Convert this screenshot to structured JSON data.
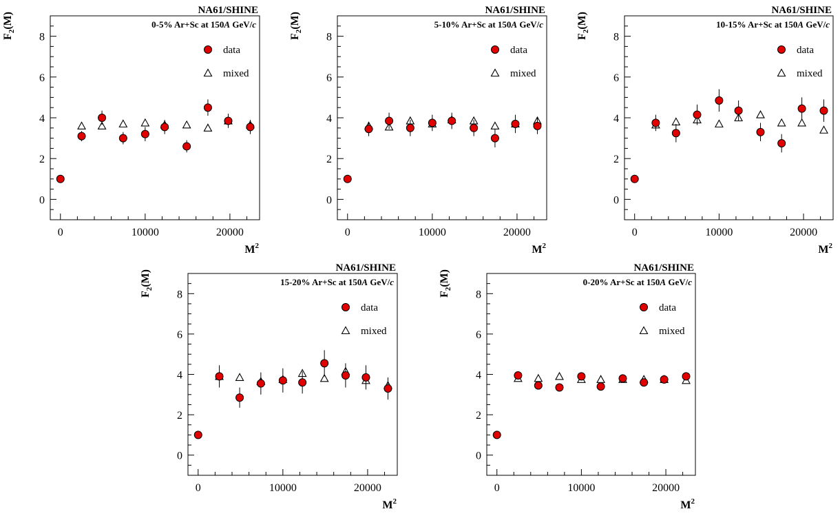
{
  "chart_data": [
    {
      "type": "scatter",
      "experiment": "NA61/SHINE",
      "condition_prefix": "0-5% Ar+Sc at 150",
      "condition_italic_a": "A",
      "condition_mid": " GeV/",
      "condition_italic_c": "c",
      "ylabel": "F",
      "ylabel_sub": "2",
      "ylabel_suffix": "(M)",
      "xlabel": "M",
      "xlabel_sup": "2",
      "xlim": [
        -1200,
        23500
      ],
      "ylim": [
        -1,
        9
      ],
      "xticks": [
        "0",
        "10000",
        "20000"
      ],
      "yticks": [
        "0",
        "2",
        "4",
        "6",
        "8"
      ],
      "legend": [
        "data",
        "mixed"
      ],
      "series": [
        {
          "name": "data",
          "x": [
            0,
            2500,
            4900,
            7400,
            10000,
            12300,
            14900,
            17400,
            19800,
            22400
          ],
          "y": [
            1.0,
            3.1,
            4.0,
            3.0,
            3.2,
            3.55,
            2.6,
            4.5,
            3.85,
            3.55
          ],
          "err": [
            0.05,
            0.25,
            0.35,
            0.3,
            0.35,
            0.35,
            0.3,
            0.4,
            0.35,
            0.35
          ]
        },
        {
          "name": "mixed",
          "x": [
            2500,
            4900,
            7400,
            10000,
            12300,
            14900,
            17400,
            19800,
            22400
          ],
          "y": [
            3.6,
            3.6,
            3.7,
            3.75,
            3.65,
            3.65,
            3.5,
            3.85,
            3.65
          ]
        }
      ]
    },
    {
      "type": "scatter",
      "experiment": "NA61/SHINE",
      "condition_prefix": "5-10% Ar+Sc at 150",
      "condition_italic_a": "A",
      "condition_mid": " GeV/",
      "condition_italic_c": "c",
      "ylabel": "F",
      "ylabel_sub": "2",
      "ylabel_suffix": "(M)",
      "xlabel": "M",
      "xlabel_sup": "2",
      "xlim": [
        -1200,
        23500
      ],
      "ylim": [
        -1,
        9
      ],
      "xticks": [
        "0",
        "10000",
        "20000"
      ],
      "yticks": [
        "0",
        "2",
        "4",
        "6",
        "8"
      ],
      "legend": [
        "data",
        "mixed"
      ],
      "series": [
        {
          "name": "data",
          "x": [
            0,
            2500,
            4900,
            7400,
            10000,
            12300,
            14900,
            17400,
            19800,
            22400
          ],
          "y": [
            1.0,
            3.45,
            3.85,
            3.5,
            3.75,
            3.85,
            3.5,
            3.0,
            3.7,
            3.6
          ],
          "err": [
            0.05,
            0.35,
            0.4,
            0.4,
            0.4,
            0.4,
            0.4,
            0.45,
            0.45,
            0.4
          ]
        },
        {
          "name": "mixed",
          "x": [
            2500,
            4900,
            7400,
            10000,
            12300,
            14900,
            17400,
            19800,
            22400
          ],
          "y": [
            3.6,
            3.55,
            3.85,
            3.7,
            3.9,
            3.85,
            3.6,
            3.7,
            3.85
          ]
        }
      ]
    },
    {
      "type": "scatter",
      "experiment": "NA61/SHINE",
      "condition_prefix": "10-15% Ar+Sc at 150",
      "condition_italic_a": "A",
      "condition_mid": " GeV/",
      "condition_italic_c": "c",
      "ylabel": "F",
      "ylabel_sub": "2",
      "ylabel_suffix": "(M)",
      "xlabel": "M",
      "xlabel_sup": "2",
      "xlim": [
        -1200,
        23500
      ],
      "ylim": [
        -1,
        9
      ],
      "xticks": [
        "0",
        "10000",
        "20000"
      ],
      "yticks": [
        "0",
        "2",
        "4",
        "6",
        "8"
      ],
      "legend": [
        "data",
        "mixed"
      ],
      "series": [
        {
          "name": "data",
          "x": [
            0,
            2500,
            4900,
            7400,
            10000,
            12300,
            14900,
            17400,
            19800,
            22400
          ],
          "y": [
            1.0,
            3.75,
            3.25,
            4.15,
            4.85,
            4.35,
            3.3,
            2.75,
            4.45,
            4.35
          ],
          "err": [
            0.05,
            0.4,
            0.45,
            0.5,
            0.55,
            0.5,
            0.45,
            0.45,
            0.55,
            0.55
          ]
        },
        {
          "name": "mixed",
          "x": [
            2500,
            4900,
            7400,
            10000,
            12300,
            14900,
            17400,
            19800,
            22400
          ],
          "y": [
            3.65,
            3.8,
            3.9,
            3.7,
            4.0,
            4.15,
            3.75,
            3.75,
            3.4
          ]
        }
      ]
    },
    {
      "type": "scatter",
      "experiment": "NA61/SHINE",
      "condition_prefix": "15-20% Ar+Sc at 150",
      "condition_italic_a": "A",
      "condition_mid": " GeV/",
      "condition_italic_c": "c",
      "ylabel": "F",
      "ylabel_sub": "2",
      "ylabel_suffix": "(M)",
      "xlabel": "M",
      "xlabel_sup": "2",
      "xlim": [
        -1200,
        23500
      ],
      "ylim": [
        -1,
        9
      ],
      "xticks": [
        "0",
        "10000",
        "20000"
      ],
      "yticks": [
        "0",
        "2",
        "4",
        "6",
        "8"
      ],
      "legend": [
        "data",
        "mixed"
      ],
      "series": [
        {
          "name": "data",
          "x": [
            0,
            2500,
            4900,
            7400,
            10000,
            12300,
            14900,
            17400,
            19800,
            22400
          ],
          "y": [
            1.0,
            3.9,
            2.85,
            3.55,
            3.7,
            3.6,
            4.55,
            3.95,
            3.85,
            3.3
          ],
          "err": [
            0.05,
            0.55,
            0.5,
            0.55,
            0.6,
            0.55,
            0.65,
            0.6,
            0.6,
            0.55
          ]
        },
        {
          "name": "mixed",
          "x": [
            2500,
            4900,
            7400,
            10000,
            12300,
            14900,
            17400,
            19800,
            22400
          ],
          "y": [
            3.9,
            3.85,
            3.65,
            3.75,
            4.05,
            3.8,
            4.15,
            3.7,
            3.45
          ]
        }
      ]
    },
    {
      "type": "scatter",
      "experiment": "NA61/SHINE",
      "condition_prefix": "0-20% Ar+Sc at 150",
      "condition_italic_a": "A",
      "condition_mid": " GeV/",
      "condition_italic_c": "c",
      "ylabel": "F",
      "ylabel_sub": "2",
      "ylabel_suffix": "(M)",
      "xlabel": "M",
      "xlabel_sup": "2",
      "xlim": [
        -1200,
        23500
      ],
      "ylim": [
        -1,
        9
      ],
      "xticks": [
        "0",
        "10000",
        "20000"
      ],
      "yticks": [
        "0",
        "2",
        "4",
        "6",
        "8"
      ],
      "legend": [
        "data",
        "mixed"
      ],
      "series": [
        {
          "name": "data",
          "x": [
            0,
            2500,
            4900,
            7400,
            10000,
            12300,
            14900,
            17400,
            19800,
            22400
          ],
          "y": [
            1.0,
            3.95,
            3.45,
            3.35,
            3.9,
            3.4,
            3.8,
            3.6,
            3.75,
            3.9
          ],
          "err": [
            0.05,
            0.2,
            0.2,
            0.2,
            0.2,
            0.2,
            0.2,
            0.2,
            0.2,
            0.2
          ]
        },
        {
          "name": "mixed",
          "x": [
            2500,
            4900,
            7400,
            10000,
            12300,
            14900,
            17400,
            19800,
            22400
          ],
          "y": [
            3.8,
            3.8,
            3.9,
            3.75,
            3.75,
            3.75,
            3.75,
            3.75,
            3.7
          ]
        }
      ]
    }
  ],
  "colors": {
    "data_fill": "#e00000",
    "marker_stroke": "#000000",
    "mixed_stroke": "#000000"
  }
}
